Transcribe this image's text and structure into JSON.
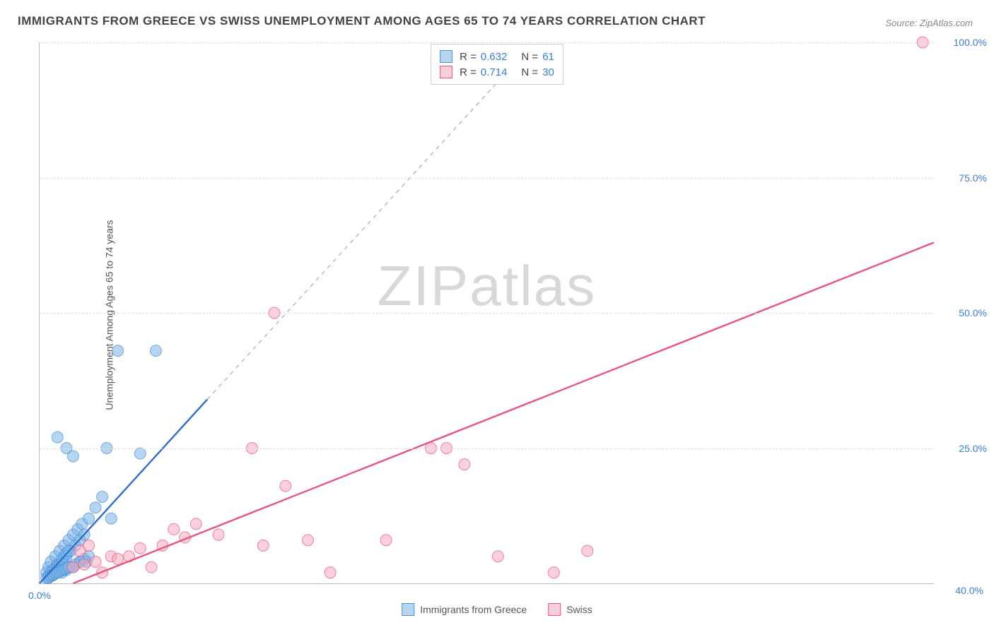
{
  "title": "IMMIGRANTS FROM GREECE VS SWISS UNEMPLOYMENT AMONG AGES 65 TO 74 YEARS CORRELATION CHART",
  "source_label": "Source: ZipAtlas.com",
  "ylabel": "Unemployment Among Ages 65 to 74 years",
  "watermark": "ZIPatlas",
  "chart": {
    "type": "scatter",
    "background_color": "#ffffff",
    "grid_color": "#dddddd",
    "axis_color": "#bbbbbb",
    "xlim": [
      0,
      40
    ],
    "ylim": [
      0,
      100
    ],
    "yticks": [
      25,
      50,
      75,
      100
    ],
    "ytick_labels": [
      "25.0%",
      "50.0%",
      "75.0%",
      "100.0%"
    ],
    "x_left_label": "0.0%",
    "x_right_label": "40.0%",
    "point_radius": 8,
    "point_opacity": 0.55,
    "series": [
      {
        "name": "Immigrants from Greece",
        "color": "#7ab3e5",
        "stroke": "#4a90d9",
        "fill_swatch": "#b8d4ef",
        "r_value": "0.632",
        "n_value": "61",
        "trend": {
          "x1": 0,
          "y1": 0,
          "x2": 7.5,
          "y2": 34,
          "color": "#2f6fc9",
          "width": 2.4,
          "dash_ext_x": 21,
          "dash_ext_y": 95
        },
        "points": [
          [
            0.3,
            2
          ],
          [
            0.4,
            3
          ],
          [
            0.5,
            4
          ],
          [
            0.6,
            2.5
          ],
          [
            0.7,
            5
          ],
          [
            0.8,
            3.5
          ],
          [
            0.9,
            6
          ],
          [
            1.0,
            4
          ],
          [
            1.1,
            7
          ],
          [
            1.2,
            5
          ],
          [
            1.3,
            8
          ],
          [
            1.4,
            6
          ],
          [
            1.5,
            9
          ],
          [
            1.6,
            7
          ],
          [
            1.7,
            10
          ],
          [
            1.8,
            8
          ],
          [
            1.9,
            11
          ],
          [
            2.0,
            9
          ],
          [
            2.1,
            4
          ],
          [
            2.2,
            12
          ],
          [
            0.5,
            2
          ],
          [
            0.6,
            1.5
          ],
          [
            0.7,
            2.5
          ],
          [
            0.8,
            3
          ],
          [
            0.9,
            3.5
          ],
          [
            1.0,
            4.5
          ],
          [
            1.1,
            5
          ],
          [
            1.2,
            5.5
          ],
          [
            1.3,
            6
          ],
          [
            2.5,
            14
          ],
          [
            2.8,
            16
          ],
          [
            0.4,
            1
          ],
          [
            0.5,
            1.5
          ],
          [
            1.5,
            3
          ],
          [
            1.8,
            4
          ],
          [
            0.8,
            27
          ],
          [
            1.2,
            25
          ],
          [
            1.5,
            23.5
          ],
          [
            3.0,
            25
          ],
          [
            4.5,
            24
          ],
          [
            3.5,
            43
          ],
          [
            5.2,
            43
          ],
          [
            1.0,
            2
          ],
          [
            1.2,
            2.5
          ],
          [
            1.4,
            3
          ],
          [
            1.6,
            3.5
          ],
          [
            1.8,
            4
          ],
          [
            2.0,
            4.5
          ],
          [
            2.2,
            5
          ],
          [
            0.3,
            1
          ],
          [
            0.4,
            1.2
          ],
          [
            0.5,
            1.4
          ],
          [
            0.6,
            1.6
          ],
          [
            0.7,
            1.8
          ],
          [
            0.8,
            2.0
          ],
          [
            0.9,
            2.2
          ],
          [
            1.0,
            2.4
          ],
          [
            1.1,
            2.6
          ],
          [
            1.2,
            2.8
          ],
          [
            1.3,
            3.0
          ],
          [
            3.2,
            12
          ]
        ]
      },
      {
        "name": "Swiss",
        "color": "#f5a9c0",
        "stroke": "#e9547e",
        "fill_swatch": "#f7cfdb",
        "r_value": "0.714",
        "n_value": "30",
        "trend": {
          "x1": 1.5,
          "y1": 0,
          "x2": 40,
          "y2": 63,
          "color": "#e9547e",
          "width": 2.4
        },
        "points": [
          [
            1.5,
            3
          ],
          [
            2.0,
            3.5
          ],
          [
            2.5,
            4
          ],
          [
            2.8,
            2
          ],
          [
            3.2,
            5
          ],
          [
            1.8,
            6
          ],
          [
            2.2,
            7
          ],
          [
            3.5,
            4.5
          ],
          [
            4.0,
            5
          ],
          [
            4.5,
            6.5
          ],
          [
            5.5,
            7
          ],
          [
            6.0,
            10
          ],
          [
            6.5,
            8.5
          ],
          [
            7.0,
            11
          ],
          [
            8.0,
            9
          ],
          [
            9.5,
            25
          ],
          [
            10.0,
            7
          ],
          [
            11.0,
            18
          ],
          [
            12.0,
            8
          ],
          [
            13.0,
            2
          ],
          [
            10.5,
            50
          ],
          [
            17.5,
            25
          ],
          [
            18.2,
            25
          ],
          [
            15.5,
            8
          ],
          [
            19.0,
            22
          ],
          [
            20.5,
            5
          ],
          [
            23.0,
            2
          ],
          [
            24.5,
            6
          ],
          [
            39.5,
            100
          ],
          [
            5.0,
            3
          ]
        ]
      }
    ],
    "legend_labels": [
      "Immigrants from Greece",
      "Swiss"
    ]
  }
}
